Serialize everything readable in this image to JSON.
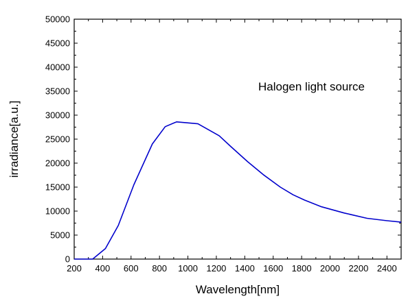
{
  "chart_data": {
    "type": "line",
    "title": "",
    "xlabel": "Wavelength[nm]",
    "ylabel": "irradiance[a.u.]",
    "xlim": [
      200,
      2500
    ],
    "ylim": [
      0,
      50000
    ],
    "xticks": [
      "200",
      "400",
      "600",
      "800",
      "1000",
      "1200",
      "1400",
      "1600",
      "1800",
      "2000",
      "2200",
      "2400"
    ],
    "yticks": [
      "0",
      "5000",
      "10000",
      "15000",
      "20000",
      "25000",
      "30000",
      "35000",
      "40000",
      "45000",
      "50000"
    ],
    "annotation": "Halogen light source",
    "grid": false,
    "line_color": "#0000cc",
    "series": [
      {
        "x": [
          200,
          330,
          420,
          510,
          620,
          750,
          840,
          920,
          1070,
          1220,
          1300,
          1420,
          1530,
          1650,
          1740,
          1820,
          1940,
          2100,
          2260,
          2400,
          2500
        ],
        "y": [
          0,
          0,
          2200,
          7000,
          15500,
          24000,
          27600,
          28600,
          28200,
          25700,
          23500,
          20300,
          17600,
          15000,
          13400,
          12300,
          10900,
          9600,
          8500,
          8000,
          7700
        ]
      }
    ]
  }
}
